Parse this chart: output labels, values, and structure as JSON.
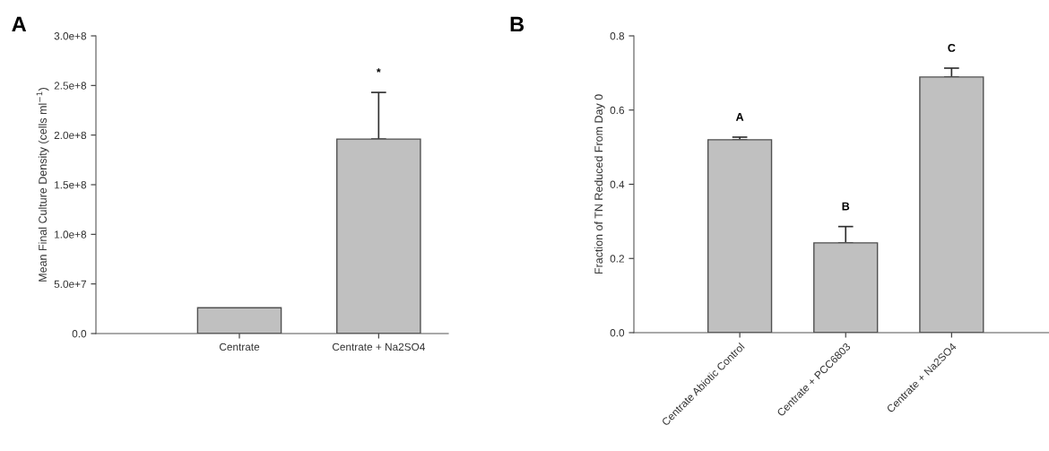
{
  "chart_data": [
    {
      "type": "bar",
      "title": "A",
      "ylabel": "Mean Final Culture Density (cells ml$^{−1}$)",
      "categories": [
        "Centrate",
        "Centrate + Na2SO4"
      ],
      "series": [
        {
          "color": "#c0c0c0",
          "values": [
            26000000,
            196000000
          ],
          "errors": [
            null,
            [
              196000000,
              243000000
            ]
          ]
        }
      ],
      "ylim": [
        0,
        300000000
      ],
      "yticks": [
        {
          "value": 0,
          "label": "0.0"
        },
        {
          "value": 50000000,
          "label": "5.0e+7"
        },
        {
          "value": 100000000,
          "label": "1.0e+8"
        },
        {
          "value": 150000000,
          "label": "1.5e+8"
        },
        {
          "value": 200000000,
          "label": "2.0e+8"
        },
        {
          "value": 250000000,
          "label": "2.5e+8"
        },
        {
          "value": 300000000,
          "label": "3.0e+8"
        }
      ],
      "annotations": [
        "*"
      ],
      "grid": false,
      "legend": false
    },
    {
      "type": "bar",
      "title": "B",
      "ylabel": "Fraction of TN Reduced From Day 0",
      "categories": [
        "Centrate Abiotic Control",
        "Centrate + PCC6803",
        "Centrate + Na2SO4"
      ],
      "series": [
        {
          "color": "#c0c0c0",
          "values": [
            0.52,
            0.242,
            0.689
          ],
          "errors": [
            [
              0.52,
              0.527
            ],
            [
              0.242,
              0.286
            ],
            [
              0.689,
              0.713
            ]
          ]
        }
      ],
      "ylim": [
        0,
        0.8
      ],
      "yticks": [
        {
          "value": 0,
          "label": "0.0"
        },
        0.2,
        0.4,
        0.6,
        0.8
      ],
      "annotations": [
        "A",
        "B",
        "C"
      ],
      "grid": false,
      "legend": false
    }
  ]
}
